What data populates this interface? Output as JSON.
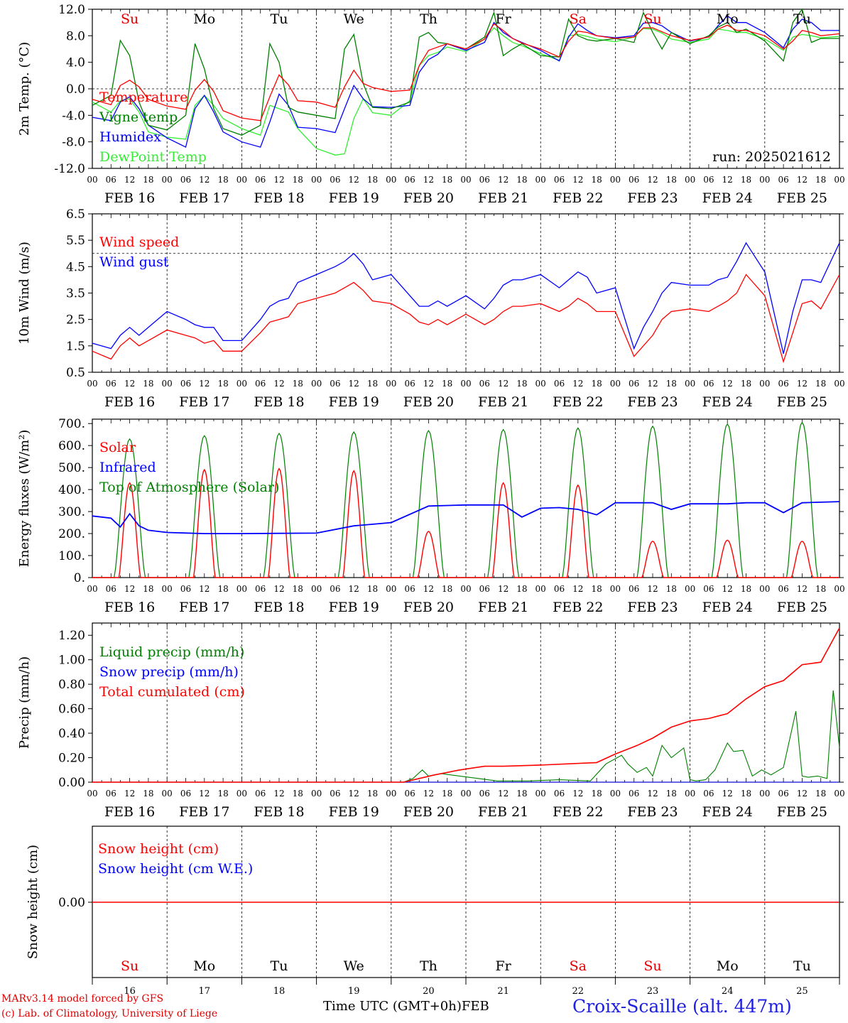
{
  "footer": {
    "credit_line1": "MARv3.14 model forced by GFS",
    "credit_line2": "(c) Lab. of Climatology, University of Liege",
    "time_label": "Time UTC (GMT+0h)",
    "month_label": "FEB",
    "station": "Croix-Scaille (alt. 447m)"
  },
  "chart_data": [
    {
      "type": "line",
      "ylabel": "2m Temp. (°C)",
      "ylim": [
        -12,
        12
      ],
      "yticks": [
        "12.0",
        "8.0",
        "4.0",
        "0.0",
        "-4.0",
        "-8.0",
        "-12.0"
      ],
      "reference_line": 0,
      "annotation": "run: 2025021612",
      "day_names": [
        "Su",
        "Mo",
        "Tu",
        "We",
        "Th",
        "Fr",
        "Sa",
        "Su",
        "Mo",
        "Tu"
      ],
      "weekend_color": "#e00000",
      "date_labels": [
        "FEB 16",
        "FEB 17",
        "FEB 18",
        "FEB 19",
        "FEB 20",
        "FEB 21",
        "FEB 22",
        "FEB 23",
        "FEB 24",
        "FEB 25"
      ],
      "hour_labels": [
        "00",
        "06",
        "12",
        "18"
      ],
      "x_hours": [
        0,
        6,
        9,
        12,
        15,
        18,
        24,
        30,
        33,
        36,
        39,
        42,
        48,
        54,
        57,
        60,
        63,
        66,
        72,
        78,
        81,
        84,
        87,
        90,
        96,
        102,
        105,
        108,
        111,
        114,
        120,
        126,
        129,
        132,
        135,
        138,
        144,
        150,
        153,
        156,
        159,
        162,
        168,
        174,
        177,
        180,
        183,
        186,
        192,
        198,
        201,
        204,
        207,
        210,
        216,
        222,
        225,
        228,
        231,
        234,
        240
      ],
      "series": [
        {
          "name": "Temperature",
          "color": "#ff0000",
          "values": [
            -1.6,
            -2.4,
            0.5,
            1.3,
            0.3,
            -1.6,
            -2.6,
            -3.1,
            -0.2,
            1.4,
            -0.4,
            -3.3,
            -4.4,
            -4.8,
            -1.2,
            2.1,
            0.6,
            -1.8,
            -2.0,
            -2.8,
            0.3,
            2.8,
            0.8,
            0.2,
            -0.4,
            -0.2,
            3.5,
            5.8,
            6.3,
            6.8,
            6.0,
            7.5,
            9.8,
            8.8,
            7.6,
            6.9,
            6.0,
            4.8,
            7.2,
            8.7,
            8.5,
            8.0,
            7.6,
            7.8,
            9.2,
            9.2,
            8.6,
            8.0,
            7.3,
            7.8,
            9.0,
            9.6,
            8.8,
            8.8,
            8.0,
            6.0,
            7.2,
            8.8,
            8.5,
            8.0,
            8.3
          ]
        },
        {
          "name": "Vigne temp",
          "color": "#008000",
          "values": [
            -2.5,
            -1.0,
            7.3,
            5.0,
            -2.0,
            -5.5,
            -6.2,
            -4.0,
            6.8,
            3.0,
            -3.0,
            -6.0,
            -7.0,
            -5.5,
            6.8,
            4.0,
            -2.8,
            -3.5,
            -4.0,
            -4.5,
            6.0,
            8.2,
            0.8,
            -2.8,
            -3.0,
            -2.0,
            7.8,
            8.5,
            7.0,
            6.8,
            6.0,
            7.8,
            11.5,
            5.0,
            6.0,
            6.8,
            5.0,
            4.8,
            10.5,
            8.0,
            7.4,
            7.2,
            7.6,
            7.0,
            11.5,
            8.5,
            6.0,
            8.5,
            6.8,
            8.0,
            9.3,
            10.0,
            8.5,
            9.0,
            7.2,
            4.2,
            10.0,
            12.0,
            7.0,
            7.6,
            7.6
          ]
        },
        {
          "name": "Humidex",
          "color": "#0000ff",
          "values": [
            -4.3,
            -4.8,
            -2.0,
            -1.2,
            -3.0,
            -5.5,
            -7.4,
            -8.8,
            -3.0,
            -1.0,
            -3.5,
            -6.5,
            -8.0,
            -8.8,
            -5.0,
            -0.8,
            -2.5,
            -5.8,
            -6.0,
            -6.6,
            -3.0,
            0.5,
            -1.5,
            -2.7,
            -2.8,
            -2.5,
            2.5,
            4.4,
            5.2,
            6.8,
            5.8,
            7.0,
            10.0,
            8.5,
            7.6,
            7.0,
            5.8,
            4.2,
            7.8,
            9.8,
            8.8,
            8.0,
            7.7,
            8.0,
            9.9,
            10.0,
            9.5,
            8.5,
            7.2,
            7.8,
            9.5,
            11.0,
            10.0,
            10.0,
            8.5,
            6.2,
            9.0,
            10.5,
            10.0,
            8.8,
            8.8
          ]
        },
        {
          "name": "DewPoint Temp",
          "color": "#33ee33",
          "values": [
            -2.0,
            -3.5,
            -1.8,
            -1.5,
            -3.5,
            -6.5,
            -7.3,
            -7.6,
            -2.5,
            -1.0,
            -2.5,
            -4.5,
            -6.0,
            -7.0,
            -2.5,
            -3.0,
            -3.5,
            -6.0,
            -9.0,
            -10.0,
            -9.8,
            -4.5,
            -1.5,
            -3.6,
            -4.0,
            -1.8,
            3.5,
            5.0,
            5.5,
            6.3,
            5.6,
            7.5,
            9.2,
            8.0,
            7.0,
            6.5,
            5.3,
            4.3,
            8.0,
            8.2,
            7.9,
            7.5,
            7.1,
            7.8,
            9.1,
            9.0,
            8.4,
            7.5,
            7.0,
            7.5,
            9.0,
            8.8,
            8.5,
            8.5,
            7.5,
            5.8,
            7.8,
            8.2,
            8.0,
            7.7,
            7.9
          ]
        }
      ]
    },
    {
      "type": "line",
      "ylabel": "10m Wind (m/s)",
      "ylim": [
        0.5,
        6.5
      ],
      "yticks": [
        "6.5",
        "5.5",
        "4.5",
        "3.5",
        "2.5",
        "1.5",
        "0.5"
      ],
      "reference_line": 5.0,
      "date_labels": [
        "FEB 16",
        "FEB 17",
        "FEB 18",
        "FEB 19",
        "FEB 20",
        "FEB 21",
        "FEB 22",
        "FEB 23",
        "FEB 24",
        "FEB 25"
      ],
      "hour_labels": [
        "00",
        "06",
        "12",
        "18"
      ],
      "x_hours": [
        0,
        6,
        9,
        12,
        15,
        18,
        24,
        30,
        33,
        36,
        39,
        42,
        48,
        54,
        57,
        60,
        63,
        66,
        72,
        78,
        81,
        84,
        87,
        90,
        96,
        102,
        105,
        108,
        111,
        114,
        120,
        126,
        129,
        132,
        135,
        138,
        144,
        150,
        153,
        156,
        159,
        162,
        168,
        174,
        177,
        180,
        183,
        186,
        192,
        198,
        201,
        204,
        207,
        210,
        216,
        222,
        225,
        228,
        231,
        234,
        240
      ],
      "series": [
        {
          "name": "Wind speed",
          "color": "#ff0000",
          "values": [
            1.3,
            1.0,
            1.5,
            1.8,
            1.5,
            1.7,
            2.1,
            1.9,
            1.8,
            1.6,
            1.7,
            1.3,
            1.3,
            2.0,
            2.4,
            2.5,
            2.6,
            3.1,
            3.3,
            3.5,
            3.7,
            3.9,
            3.6,
            3.2,
            3.1,
            2.7,
            2.4,
            2.3,
            2.5,
            2.3,
            2.7,
            2.3,
            2.5,
            2.8,
            3.0,
            3.0,
            3.1,
            2.8,
            3.0,
            3.3,
            3.1,
            2.8,
            2.8,
            1.1,
            1.5,
            1.9,
            2.5,
            2.8,
            2.9,
            2.8,
            3.0,
            3.2,
            3.5,
            4.2,
            3.4,
            0.9,
            2.0,
            3.1,
            3.2,
            2.9,
            4.2
          ]
        },
        {
          "name": "Wind gust",
          "color": "#0000ff",
          "values": [
            1.6,
            1.4,
            1.9,
            2.2,
            1.9,
            2.2,
            2.8,
            2.5,
            2.3,
            2.2,
            2.2,
            1.7,
            1.7,
            2.5,
            3.0,
            3.2,
            3.3,
            3.9,
            4.2,
            4.5,
            4.7,
            5.0,
            4.6,
            4.0,
            4.2,
            3.4,
            3.0,
            3.0,
            3.2,
            3.0,
            3.4,
            2.9,
            3.3,
            3.8,
            4.0,
            4.0,
            4.2,
            3.7,
            4.0,
            4.3,
            4.1,
            3.5,
            3.7,
            1.4,
            2.2,
            2.8,
            3.5,
            3.9,
            3.8,
            3.8,
            4.0,
            4.1,
            4.7,
            5.4,
            4.3,
            1.2,
            2.8,
            4.0,
            4.0,
            3.9,
            5.4
          ]
        }
      ]
    },
    {
      "type": "line",
      "ylabel": "Energy fluxes (W/m²)",
      "ylim": [
        0,
        720
      ],
      "yticks": [
        "700.",
        "600.",
        "500.",
        "400.",
        "300.",
        "200.",
        "100.",
        "0."
      ],
      "date_labels": [
        "FEB 16",
        "FEB 17",
        "FEB 18",
        "FEB 19",
        "FEB 20",
        "FEB 21",
        "FEB 22",
        "FEB 23",
        "FEB 24",
        "FEB 25"
      ],
      "hour_labels": [
        "00",
        "06",
        "12",
        "18"
      ],
      "solar_window": [
        7,
        17
      ],
      "series": [
        {
          "name": "Solar",
          "color": "#ff0000",
          "daily_peaks": [
            430,
            490,
            495,
            485,
            210,
            430,
            420,
            165,
            170,
            165
          ]
        },
        {
          "name": "Infrared",
          "color": "#0000ff",
          "x_hours": [
            0,
            6,
            9,
            12,
            15,
            18,
            24,
            36,
            48,
            72,
            84,
            96,
            108,
            120,
            126,
            132,
            138,
            144,
            150,
            156,
            162,
            168,
            180,
            186,
            192,
            204,
            210,
            216,
            222,
            228,
            240
          ],
          "values": [
            280,
            270,
            230,
            290,
            235,
            215,
            205,
            200,
            200,
            202,
            235,
            250,
            325,
            330,
            330,
            330,
            275,
            315,
            318,
            310,
            285,
            340,
            340,
            310,
            335,
            335,
            340,
            340,
            295,
            340,
            345
          ]
        },
        {
          "name": "Top of Atmosphere (Solar)",
          "color": "#008000",
          "daily_peaks": [
            630,
            645,
            655,
            662,
            668,
            673,
            680,
            688,
            698,
            705
          ]
        }
      ]
    },
    {
      "type": "line",
      "ylabel": "Precip (mm/h)",
      "ylim": [
        0,
        1.3
      ],
      "yticks": [
        "1.20",
        "1.00",
        "0.80",
        "0.60",
        "0.40",
        "0.20",
        "0.00"
      ],
      "date_labels": [
        "FEB 16",
        "FEB 17",
        "FEB 18",
        "FEB 19",
        "FEB 20",
        "FEB 21",
        "FEB 22",
        "FEB 23",
        "FEB 24",
        "FEB 25"
      ],
      "hour_labels": [
        "00",
        "06",
        "12",
        "18"
      ],
      "series": [
        {
          "name": "Liquid precip (mm/h)",
          "color": "#008000",
          "x_hours": [
            0,
            100,
            103,
            106,
            108,
            112,
            118,
            124,
            130,
            140,
            150,
            160,
            165,
            170,
            172,
            175,
            178,
            180,
            183,
            186,
            190,
            192,
            194,
            197,
            200,
            204,
            206,
            209,
            212,
            215,
            218,
            222,
            226,
            228,
            230,
            233,
            236,
            238,
            240
          ],
          "values": [
            0,
            0,
            0.03,
            0.1,
            0.05,
            0.07,
            0.05,
            0.03,
            0.01,
            0.01,
            0.02,
            0.01,
            0.15,
            0.22,
            0.15,
            0.08,
            0.12,
            0.05,
            0.3,
            0.2,
            0.28,
            0.02,
            0.01,
            0.02,
            0.1,
            0.32,
            0.25,
            0.26,
            0.05,
            0.1,
            0.06,
            0.12,
            0.58,
            0.05,
            0.04,
            0.05,
            0.03,
            0.75,
            0.28
          ]
        },
        {
          "name": "Snow precip (mm/h)",
          "color": "#0000ff",
          "x_hours": [
            0,
            240
          ],
          "values": [
            0,
            0
          ]
        },
        {
          "name": "Total cumulated (cm)",
          "color": "#ff0000",
          "x_hours": [
            0,
            100,
            105,
            110,
            118,
            126,
            132,
            144,
            162,
            168,
            175,
            180,
            186,
            192,
            198,
            204,
            210,
            216,
            222,
            228,
            234,
            240
          ],
          "values": [
            0,
            0,
            0.03,
            0.06,
            0.1,
            0.13,
            0.13,
            0.14,
            0.16,
            0.23,
            0.3,
            0.36,
            0.45,
            0.5,
            0.52,
            0.56,
            0.68,
            0.78,
            0.83,
            0.96,
            0.98,
            1.26
          ]
        }
      ]
    },
    {
      "type": "line",
      "ylabel": "Snow height (cm)",
      "yticks": [
        "0.00"
      ],
      "day_names": [
        "Su",
        "Mo",
        "Tu",
        "We",
        "Th",
        "Fr",
        "Sa",
        "Su",
        "Mo",
        "Tu"
      ],
      "day_numbers": [
        "16",
        "17",
        "18",
        "19",
        "20",
        "21",
        "22",
        "23",
        "24",
        "25"
      ],
      "weekend_color": "#e00000",
      "series": [
        {
          "name": "Snow height (cm)",
          "color": "#ff0000",
          "values": [
            0,
            0
          ]
        },
        {
          "name": "Snow height (cm W.E.)",
          "color": "#0000ff",
          "values": []
        }
      ]
    }
  ]
}
